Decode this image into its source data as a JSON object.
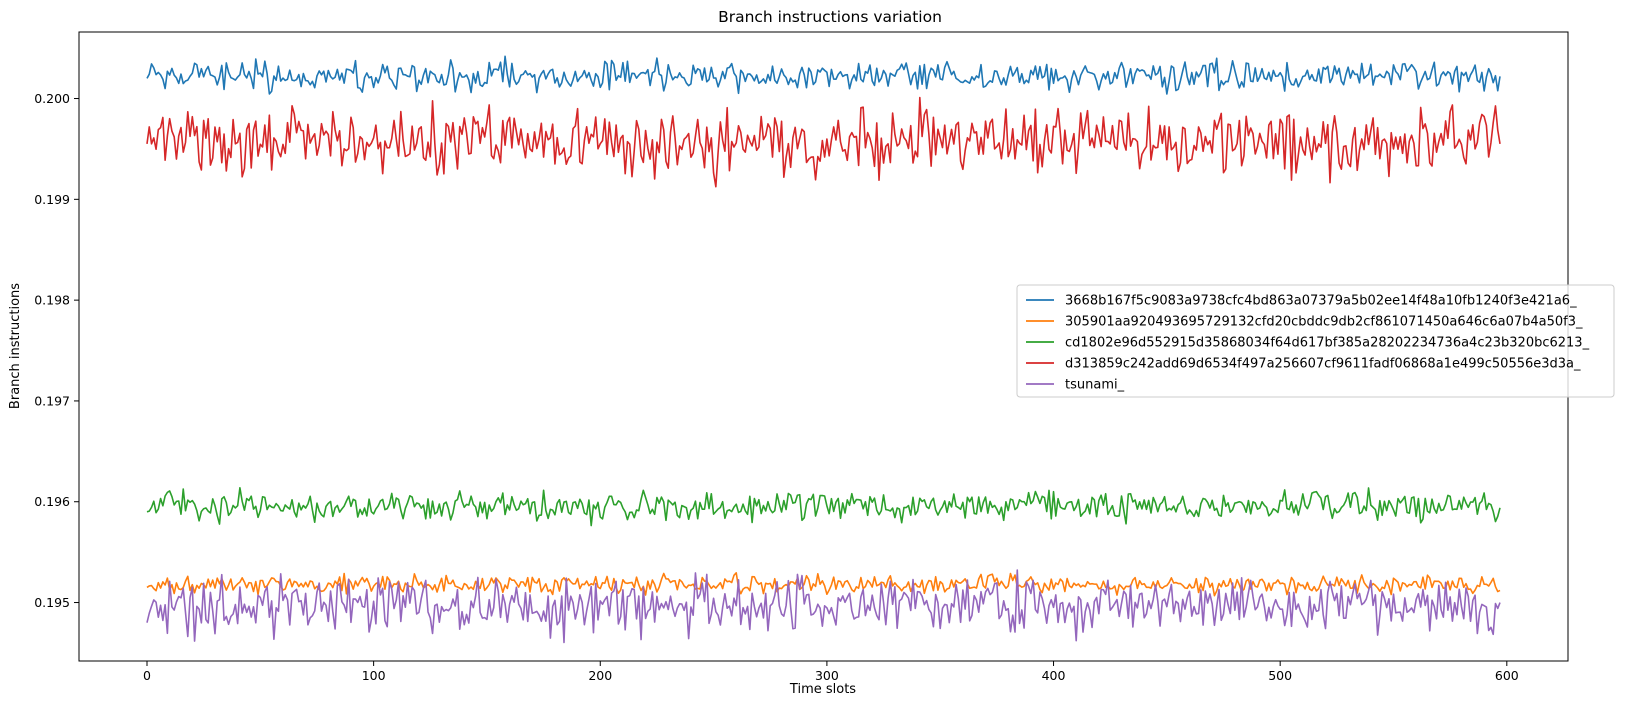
{
  "chart_data": {
    "type": "line",
    "title": "Branch instructions variation",
    "xlabel": "Time slots",
    "ylabel": "Branch instructions",
    "xlim": [
      -30,
      627
    ],
    "ylim": [
      0.19442,
      0.20066
    ],
    "xticks": [
      0,
      100,
      200,
      300,
      400,
      500,
      600
    ],
    "yticks": [
      0.195,
      0.196,
      0.197,
      0.198,
      0.199,
      0.2
    ],
    "grid": false,
    "legend_position": "center-right",
    "n_points": 598,
    "series": [
      {
        "name": "3668b167f5c9083a9738cfc4bd863a07379a5b02ee14f48a10fb1240f3e421a6_",
        "color": "#1f77b4",
        "mean": 0.20022,
        "amp": 8e-05,
        "seed": 11,
        "start": 0.2002,
        "end": 0.20022
      },
      {
        "name": "305901aa920493695729132cfd20cbddc9db2cf861071450a646c6a07b4a50f3_",
        "color": "#ff7f0e",
        "mean": 0.19518,
        "amp": 5e-05,
        "seed": 23,
        "start": 0.19515,
        "end": 0.19512
      },
      {
        "name": "cd1802e96d552915d35868034f64d617bf385a28202234736a4c23b320bc6213_",
        "color": "#2ca02c",
        "mean": 0.19596,
        "amp": 8e-05,
        "seed": 37,
        "start": 0.1959,
        "end": 0.19594
      },
      {
        "name": "d313859c242add69d6534f497a256607cf9611fadf06868a1e499c50556e3d3a_",
        "color": "#d62728",
        "mean": 0.19958,
        "amp": 0.00018,
        "seed": 51,
        "start": 0.19955,
        "end": 0.19955
      },
      {
        "name": "tsunami_",
        "color": "#9467bd",
        "mean": 0.19498,
        "amp": 0.00015,
        "seed": 73,
        "start": 0.1948,
        "end": 0.195
      }
    ]
  }
}
